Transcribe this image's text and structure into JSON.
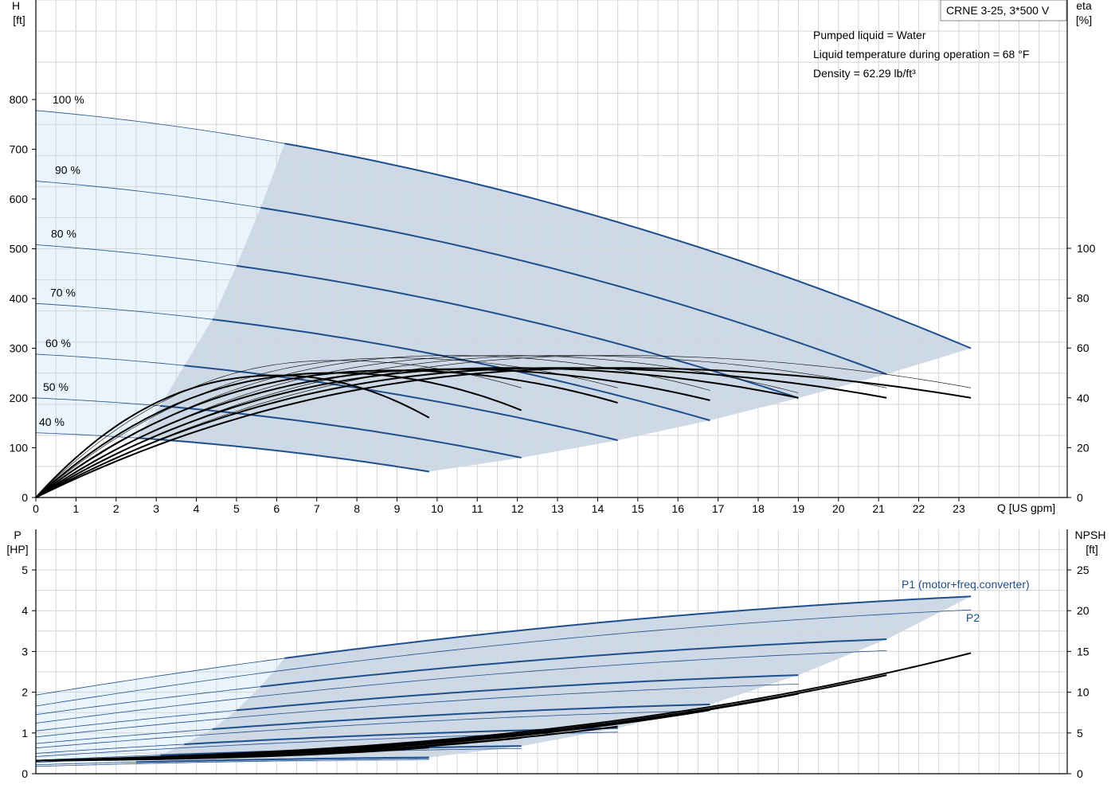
{
  "model_label": "CRNE 3-25, 3*500 V",
  "info_lines": [
    "Pumped liquid = Water",
    "Liquid temperature during operation = 68 °F",
    "Density = 62.29 lb/ft³"
  ],
  "colors": {
    "curve_blue": "#1f4e8c",
    "region_dark": "#cdd9e6",
    "region_light": "#eaf4fc",
    "grid": "#d4d4d4"
  },
  "chart_data": [
    {
      "type": "line",
      "name": "head-eta",
      "x_axis": {
        "label": "Q [US gpm]",
        "range": [
          0,
          25.7
        ],
        "ticks": [
          0,
          1,
          2,
          3,
          4,
          5,
          6,
          7,
          8,
          9,
          10,
          11,
          12,
          13,
          14,
          15,
          16,
          17,
          18,
          19,
          20,
          21,
          22,
          23
        ]
      },
      "y_left": {
        "label_top": "H",
        "label_unit": "[ft]",
        "range": [
          0,
          800
        ],
        "ticks": [
          0,
          100,
          200,
          300,
          400,
          500,
          600,
          700,
          800
        ]
      },
      "y_right": {
        "label_top": "eta",
        "label_unit": "[%]",
        "range": [
          0,
          100
        ],
        "ticks": [
          0,
          20,
          40,
          60,
          80,
          100
        ]
      },
      "speed_labels": [
        "100 %",
        "90 %",
        "80 %",
        "70 %",
        "60 %",
        "50 %",
        "40 %"
      ],
      "head_curves": [
        {
          "name": "100 %",
          "h0": 778,
          "q_end": 23.3,
          "h_end": 300,
          "q_start": 6.2
        },
        {
          "name": "90 %",
          "h0": 636,
          "q_end": 21.2,
          "h_end": 248,
          "q_start": 5.6
        },
        {
          "name": "80 %",
          "h0": 508,
          "q_end": 19.0,
          "h_end": 200,
          "q_start": 5.0
        },
        {
          "name": "70 %",
          "h0": 390,
          "q_end": 16.8,
          "h_end": 155,
          "q_start": 4.4
        },
        {
          "name": "60 %",
          "h0": 288,
          "q_end": 14.5,
          "h_end": 115,
          "q_start": 3.7
        },
        {
          "name": "50 %",
          "h0": 200,
          "q_end": 12.1,
          "h_end": 80,
          "q_start": 3.1
        },
        {
          "name": "40 %",
          "h0": 130,
          "q_end": 9.8,
          "h_end": 52,
          "q_start": 2.5
        }
      ],
      "eta_curves": [
        {
          "q_end": 23.3,
          "eta_end": 40,
          "eta_peak": 52,
          "bold": true
        },
        {
          "q_end": 21.2,
          "eta_end": 40,
          "eta_peak": 52,
          "bold": true
        },
        {
          "q_end": 19.0,
          "eta_end": 40,
          "eta_peak": 52,
          "bold": true
        },
        {
          "q_end": 16.8,
          "eta_end": 39,
          "eta_peak": 51.5,
          "bold": true
        },
        {
          "q_end": 14.5,
          "eta_end": 38,
          "eta_peak": 51,
          "bold": true
        },
        {
          "q_end": 12.1,
          "eta_end": 35,
          "eta_peak": 50,
          "bold": true
        },
        {
          "q_end": 9.8,
          "eta_end": 32,
          "eta_peak": 49,
          "bold": true
        },
        {
          "q_end": 23.3,
          "eta_end": 44,
          "eta_peak": 57,
          "bold": false
        },
        {
          "q_end": 21.2,
          "eta_end": 44,
          "eta_peak": 57,
          "bold": false
        },
        {
          "q_end": 19.0,
          "eta_end": 42,
          "eta_peak": 57,
          "bold": false
        },
        {
          "q_end": 16.8,
          "eta_end": 43,
          "eta_peak": 57,
          "bold": false
        },
        {
          "q_end": 14.5,
          "eta_end": 44,
          "eta_peak": 56,
          "bold": false
        },
        {
          "q_end": 12.1,
          "eta_end": 44,
          "eta_peak": 55,
          "bold": false
        }
      ]
    },
    {
      "type": "line",
      "name": "power-npsh",
      "x_axis": {
        "range": [
          0,
          25.7
        ]
      },
      "y_left": {
        "label_top": "P",
        "label_unit": "[HP]",
        "range": [
          0,
          5
        ],
        "ticks": [
          0,
          1,
          2,
          3,
          4,
          5
        ]
      },
      "y_right": {
        "label_top": "NPSH",
        "label_unit": "[ft]",
        "range": [
          0,
          25
        ],
        "ticks": [
          0,
          5,
          10,
          15,
          20,
          25
        ]
      },
      "series_labels": [
        "P1 (motor+freq.converter)",
        "P2"
      ],
      "p1_curves": [
        {
          "p0": 1.93,
          "q_start": 6.2,
          "p_start": 2.97,
          "q_end": 23.3,
          "p_end": 4.35
        },
        {
          "p0": 1.45,
          "q_start": 5.6,
          "p_start": 2.25,
          "q_end": 21.2,
          "p_end": 3.3
        },
        {
          "p0": 1.05,
          "q_start": 5.0,
          "p_start": 1.65,
          "q_end": 19.0,
          "p_end": 2.42
        },
        {
          "p0": 0.74,
          "q_start": 4.4,
          "p_start": 1.14,
          "q_end": 16.8,
          "p_end": 1.7
        },
        {
          "p0": 0.5,
          "q_start": 3.7,
          "p_start": 0.76,
          "q_end": 14.5,
          "p_end": 1.12
        },
        {
          "p0": 0.33,
          "q_start": 3.1,
          "p_start": 0.46,
          "q_end": 12.1,
          "p_end": 0.68
        },
        {
          "p0": 0.22,
          "q_start": 2.5,
          "p_start": 0.28,
          "q_end": 9.8,
          "p_end": 0.4
        }
      ],
      "p2_curves": [
        {
          "p0": 1.66,
          "q_end": 23.3,
          "p_end": 4.02
        },
        {
          "p0": 1.24,
          "q_end": 21.2,
          "p_end": 3.02
        },
        {
          "p0": 0.9,
          "q_end": 19.0,
          "p_end": 2.2
        },
        {
          "p0": 0.63,
          "q_end": 16.8,
          "p_end": 1.55
        },
        {
          "p0": 0.42,
          "q_end": 14.5,
          "p_end": 1.02
        },
        {
          "p0": 0.28,
          "q_end": 12.1,
          "p_end": 0.62
        },
        {
          "p0": 0.18,
          "q_end": 9.8,
          "p_end": 0.36
        }
      ],
      "npsh_curves": [
        {
          "q_end": 23.3,
          "n_end": 14.8
        },
        {
          "q_end": 21.2,
          "n_end": 12.1
        },
        {
          "q_end": 19.0,
          "n_end": 9.8
        },
        {
          "q_end": 16.8,
          "n_end": 7.8
        },
        {
          "q_end": 14.5,
          "n_end": 5.8
        },
        {
          "q_end": 12.1,
          "n_end": 4.4
        },
        {
          "q_end": 9.8,
          "n_end": 3.2
        }
      ]
    }
  ]
}
